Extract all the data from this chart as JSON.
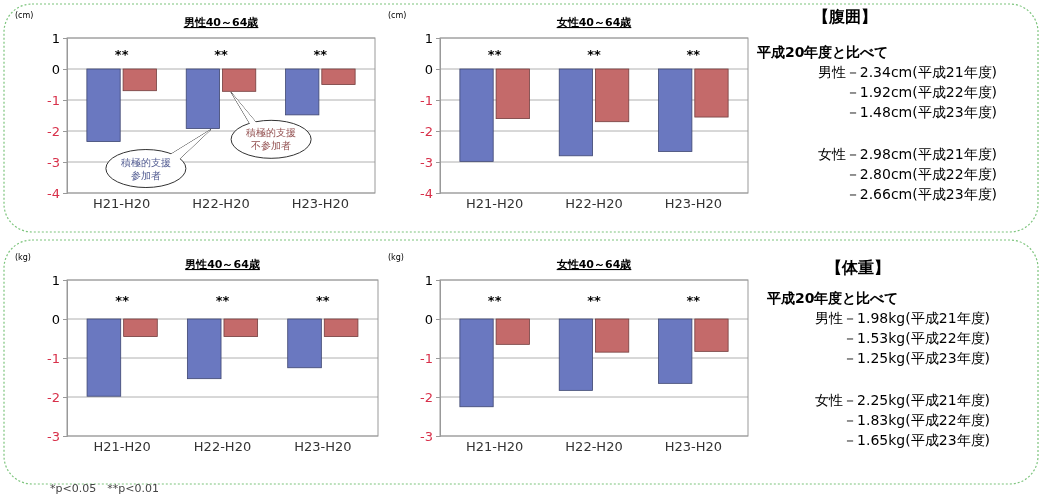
{
  "chart_data": [
    {
      "type": "bar",
      "title": "男性40～64歳",
      "ylabel": "(cm)",
      "categories": [
        "H21-H20",
        "H22-H20",
        "H23-H20"
      ],
      "series": [
        {
          "name": "積極的支援参加者",
          "color": "#6a78c0",
          "values": [
            -2.34,
            -1.92,
            -1.48
          ]
        },
        {
          "name": "積極的支援不参加者",
          "color": "#c46a6a",
          "values": [
            -0.7,
            -0.72,
            -0.5
          ]
        }
      ],
      "ylim": [
        -4,
        1
      ],
      "yticks": [
        -4,
        -3,
        -2,
        -1,
        0,
        1
      ],
      "grid": "y",
      "annotations": [
        "**",
        "**",
        "**"
      ]
    },
    {
      "type": "bar",
      "title": "女性40～64歳",
      "ylabel": "(cm)",
      "categories": [
        "H21-H20",
        "H22-H20",
        "H23-H20"
      ],
      "series": [
        {
          "color": "#6a78c0",
          "values": [
            -2.98,
            -2.8,
            -2.66
          ]
        },
        {
          "color": "#c46a6a",
          "values": [
            -1.6,
            -1.7,
            -1.55
          ]
        }
      ],
      "ylim": [
        -4,
        1
      ],
      "yticks": [
        -4,
        -3,
        -2,
        -1,
        0,
        1
      ],
      "grid": "y",
      "annotations": [
        "**",
        "**",
        "**"
      ]
    },
    {
      "type": "bar",
      "title": "男性40～64歳",
      "ylabel": "(kg)",
      "categories": [
        "H21-H20",
        "H22-H20",
        "H23-H20"
      ],
      "series": [
        {
          "color": "#6a78c0",
          "values": [
            -1.98,
            -1.53,
            -1.25
          ]
        },
        {
          "color": "#c46a6a",
          "values": [
            -0.45,
            -0.45,
            -0.45
          ]
        }
      ],
      "ylim": [
        -3,
        1
      ],
      "yticks": [
        -3,
        -2,
        -1,
        0,
        1
      ],
      "grid": "y",
      "annotations": [
        "**",
        "**",
        "**",
        "*p<0.05　**p<0.01"
      ]
    },
    {
      "type": "bar",
      "title": "女性40～64歳",
      "ylabel": "(kg)",
      "categories": [
        "H21-H20",
        "H22-H20",
        "H23-H20"
      ],
      "series": [
        {
          "color": "#6a78c0",
          "values": [
            -2.25,
            -1.83,
            -1.65
          ]
        },
        {
          "color": "#c46a6a",
          "values": [
            -0.65,
            -0.85,
            -0.83
          ]
        }
      ],
      "ylim": [
        -3,
        1
      ],
      "yticks": [
        -3,
        -2,
        -1,
        0,
        1
      ],
      "grid": "y",
      "annotations": [
        "**",
        "**",
        "**"
      ]
    },
    {
      "type": "other",
      "title": "【腹囲】",
      "annotations": [
        "平成20年度と比べて",
        "男性－2.34cm(平成21年度)",
        "－1.92cm(平成22年度)",
        "－1.48cm(平成23年度)",
        "女性－2.98cm(平成21年度)",
        "－2.80cm(平成22年度)",
        "－2.66cm(平成23年度)"
      ]
    },
    {
      "type": "other",
      "title": "【体重】",
      "annotations": [
        "平成20年度と比べて",
        "男性－1.98kg(平成21年度)",
        "－1.53kg(平成22年度)",
        "－1.25kg(平成23年度)",
        "女性－2.25kg(平成21年度)",
        "－1.83kg(平成22年度)",
        "－1.65kg(平成23年度)"
      ]
    }
  ]
}
